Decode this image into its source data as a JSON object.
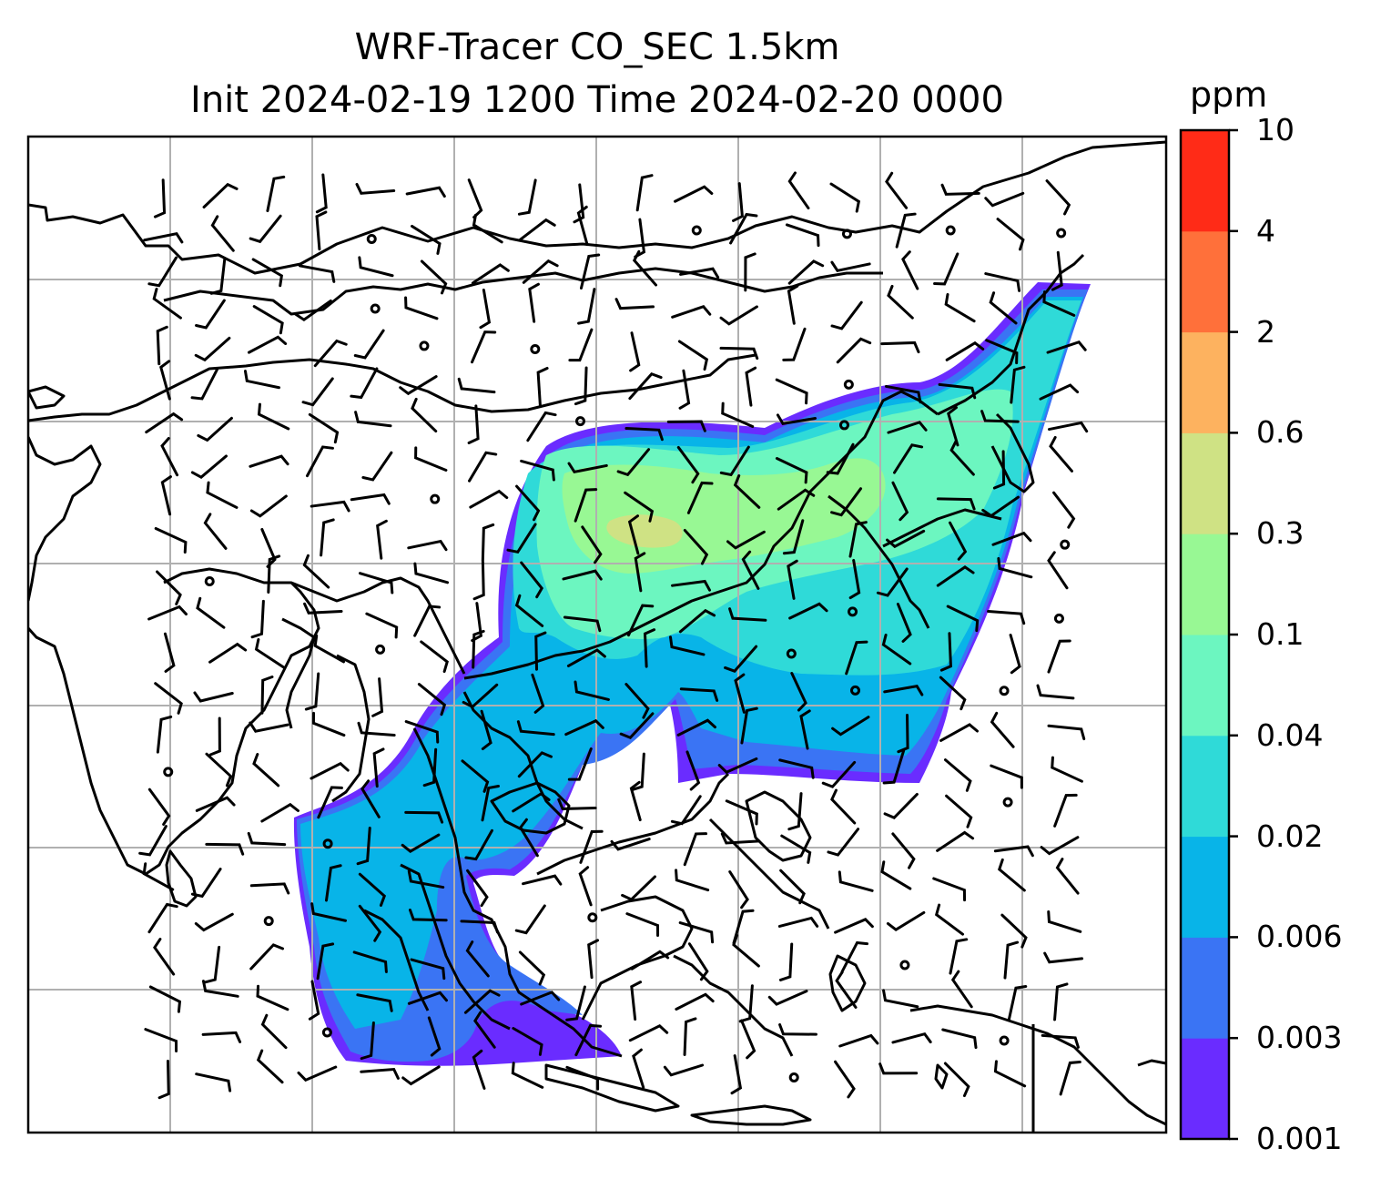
{
  "title": {
    "line1": "WRF-Tracer CO_SEC 1.5km",
    "line2": "Init 2024-02-19 1200 Time 2024-02-20 0000"
  },
  "colorbar": {
    "unit": "ppm",
    "levels": [
      "0.001",
      "0.003",
      "0.006",
      "0.02",
      "0.04",
      "0.1",
      "0.3",
      "0.6",
      "2",
      "4",
      "10"
    ],
    "colors": [
      "#6a2cff",
      "#3a74f4",
      "#08b4e8",
      "#2fdad8",
      "#6cf6c0",
      "#98f894",
      "#cfe284",
      "#fdb25f",
      "#ff703a",
      "#ff2b17"
    ]
  },
  "map": {
    "gridlines": true,
    "field_colors": {
      "outer": "#6a2cff",
      "low": "#3a74f4",
      "mid": "#08b4e8",
      "teal": "#2fdad8",
      "aqua": "#6cf6c0",
      "green": "#98f894",
      "olive": "#cfe284"
    },
    "wind_barbs": true,
    "calm_markers": true
  }
}
